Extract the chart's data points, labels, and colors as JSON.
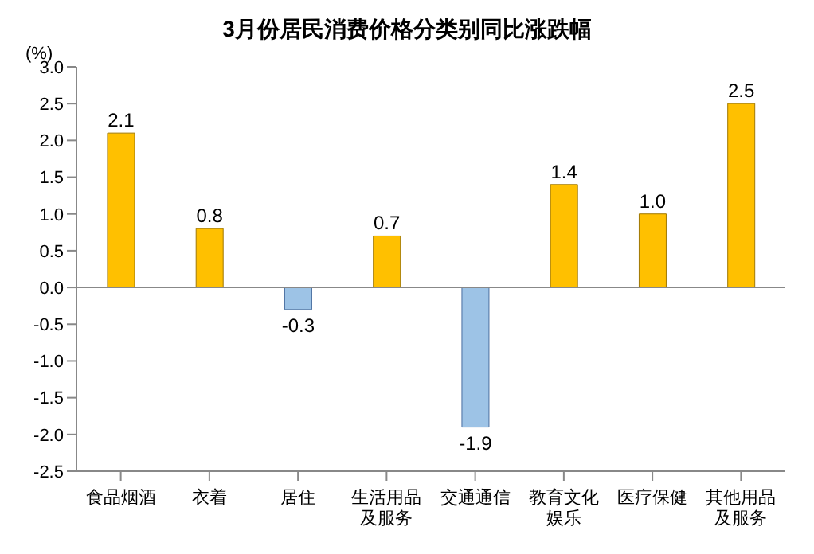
{
  "chart_data": {
    "type": "bar",
    "title": "3月份居民消费价格分类别同比涨跌幅",
    "ylabel": "(%)",
    "categories": [
      "食品烟酒",
      "衣着",
      "居住",
      "生活用品及服务",
      "交通通信",
      "教育文化娱乐",
      "医疗保健",
      "其他用品及服务"
    ],
    "ref_lines": [
      {
        "axis": "y",
        "value": 0
      }
    ],
    "values": [
      2.1,
      0.8,
      -0.3,
      0.7,
      -1.9,
      1.4,
      1.0,
      2.5
    ],
    "colors": [
      "#ffc000",
      "#ffc000",
      "#9dc3e6",
      "#ffc000",
      "#9dc3e6",
      "#ffc000",
      "#ffc000",
      "#ffc000"
    ],
    "ylim": [
      -2.5,
      3.0
    ],
    "yticks": [
      {
        "value": -2.5,
        "label": "-2.5"
      },
      {
        "value": -2,
        "label": "-2.0"
      },
      {
        "value": -1.5,
        "label": "-1.5"
      },
      {
        "value": -1,
        "label": "-1.0"
      },
      {
        "value": -0.5,
        "label": "-0.5"
      },
      {
        "value": 0,
        "label": "0.0"
      },
      {
        "value": 0.5,
        "label": "0.5"
      },
      {
        "value": 1,
        "label": "1.0"
      },
      {
        "value": 1.5,
        "label": "1.5"
      },
      {
        "value": 2,
        "label": "2.0"
      },
      {
        "value": 2.5,
        "label": "2.5"
      },
      {
        "value": 3,
        "label": "3.0"
      }
    ],
    "value_labels": [
      "2.1",
      "0.8",
      "-0.3",
      "0.7",
      "-1.9",
      "1.4",
      "1.0",
      "2.5"
    ],
    "grid": false
  }
}
